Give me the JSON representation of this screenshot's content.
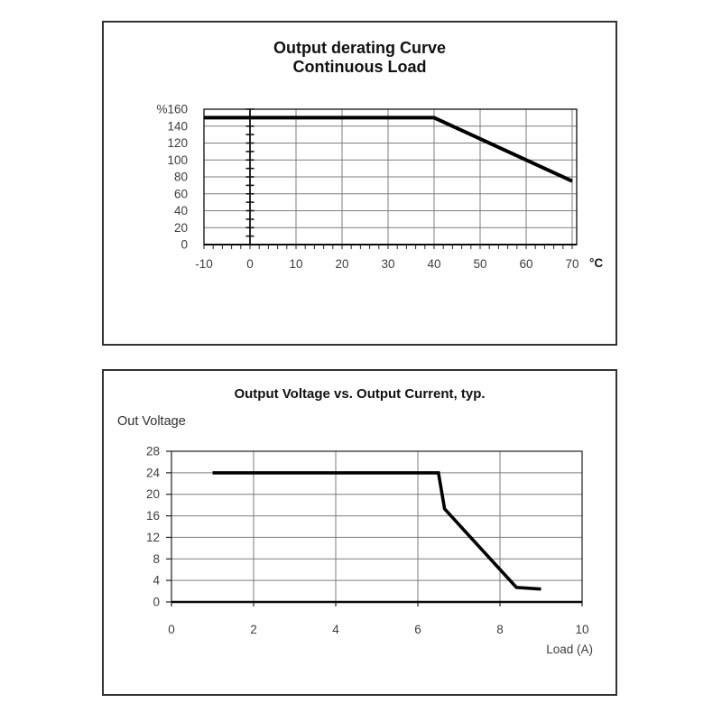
{
  "window": {
    "background": "#ffffff"
  },
  "chart_data": [
    {
      "type": "line",
      "title": "Output derating Curve",
      "subtitle": "Continuous Load",
      "xlabel": "°C",
      "ylabel": "%",
      "xlim": [
        -10,
        70
      ],
      "ylim": [
        0,
        160
      ],
      "x_ticks": [
        -10,
        0,
        10,
        20,
        30,
        40,
        50,
        60,
        70
      ],
      "x_tick_labels": [
        "-10",
        "0",
        "10",
        "20",
        "30",
        "40",
        "50",
        "60",
        "70"
      ],
      "y_ticks": [
        160,
        140,
        120,
        100,
        80,
        60,
        40,
        20,
        0
      ],
      "y_tick_labels": [
        "%160",
        "140",
        "120",
        "100",
        "80",
        "60",
        "40",
        "20",
        "0"
      ],
      "minor_x_tick_step": 2,
      "y_axis_line_at_x": 0,
      "y_axis_minor_tick_step": 10,
      "grid": true,
      "legend": "none",
      "line_color": "#000000",
      "series": [
        {
          "name": "continuous-load-derating",
          "points": [
            [
              -10,
              150
            ],
            [
              40,
              150
            ],
            [
              70,
              75
            ]
          ]
        }
      ]
    },
    {
      "type": "line",
      "title": "Output Voltage vs. Output Current, typ.",
      "xlabel": "Load (A)",
      "ylabel": "Out Voltage",
      "xlim": [
        0,
        10
      ],
      "ylim": [
        0,
        28
      ],
      "x_ticks": [
        0,
        2,
        4,
        6,
        8,
        10
      ],
      "x_tick_labels": [
        "0",
        "2",
        "4",
        "6",
        "8",
        "10"
      ],
      "y_ticks": [
        28,
        24,
        20,
        16,
        12,
        8,
        4,
        0
      ],
      "y_tick_labels": [
        "28",
        "24",
        "20",
        "16",
        "12",
        "8",
        "4",
        "0"
      ],
      "grid": true,
      "legend": "none",
      "line_color": "#000000",
      "series": [
        {
          "name": "output-voltage-vs-load",
          "points": [
            [
              1,
              24
            ],
            [
              6.5,
              24
            ],
            [
              6.65,
              17.3
            ],
            [
              8.4,
              2.7
            ],
            [
              9,
              2.4
            ]
          ]
        }
      ]
    }
  ]
}
